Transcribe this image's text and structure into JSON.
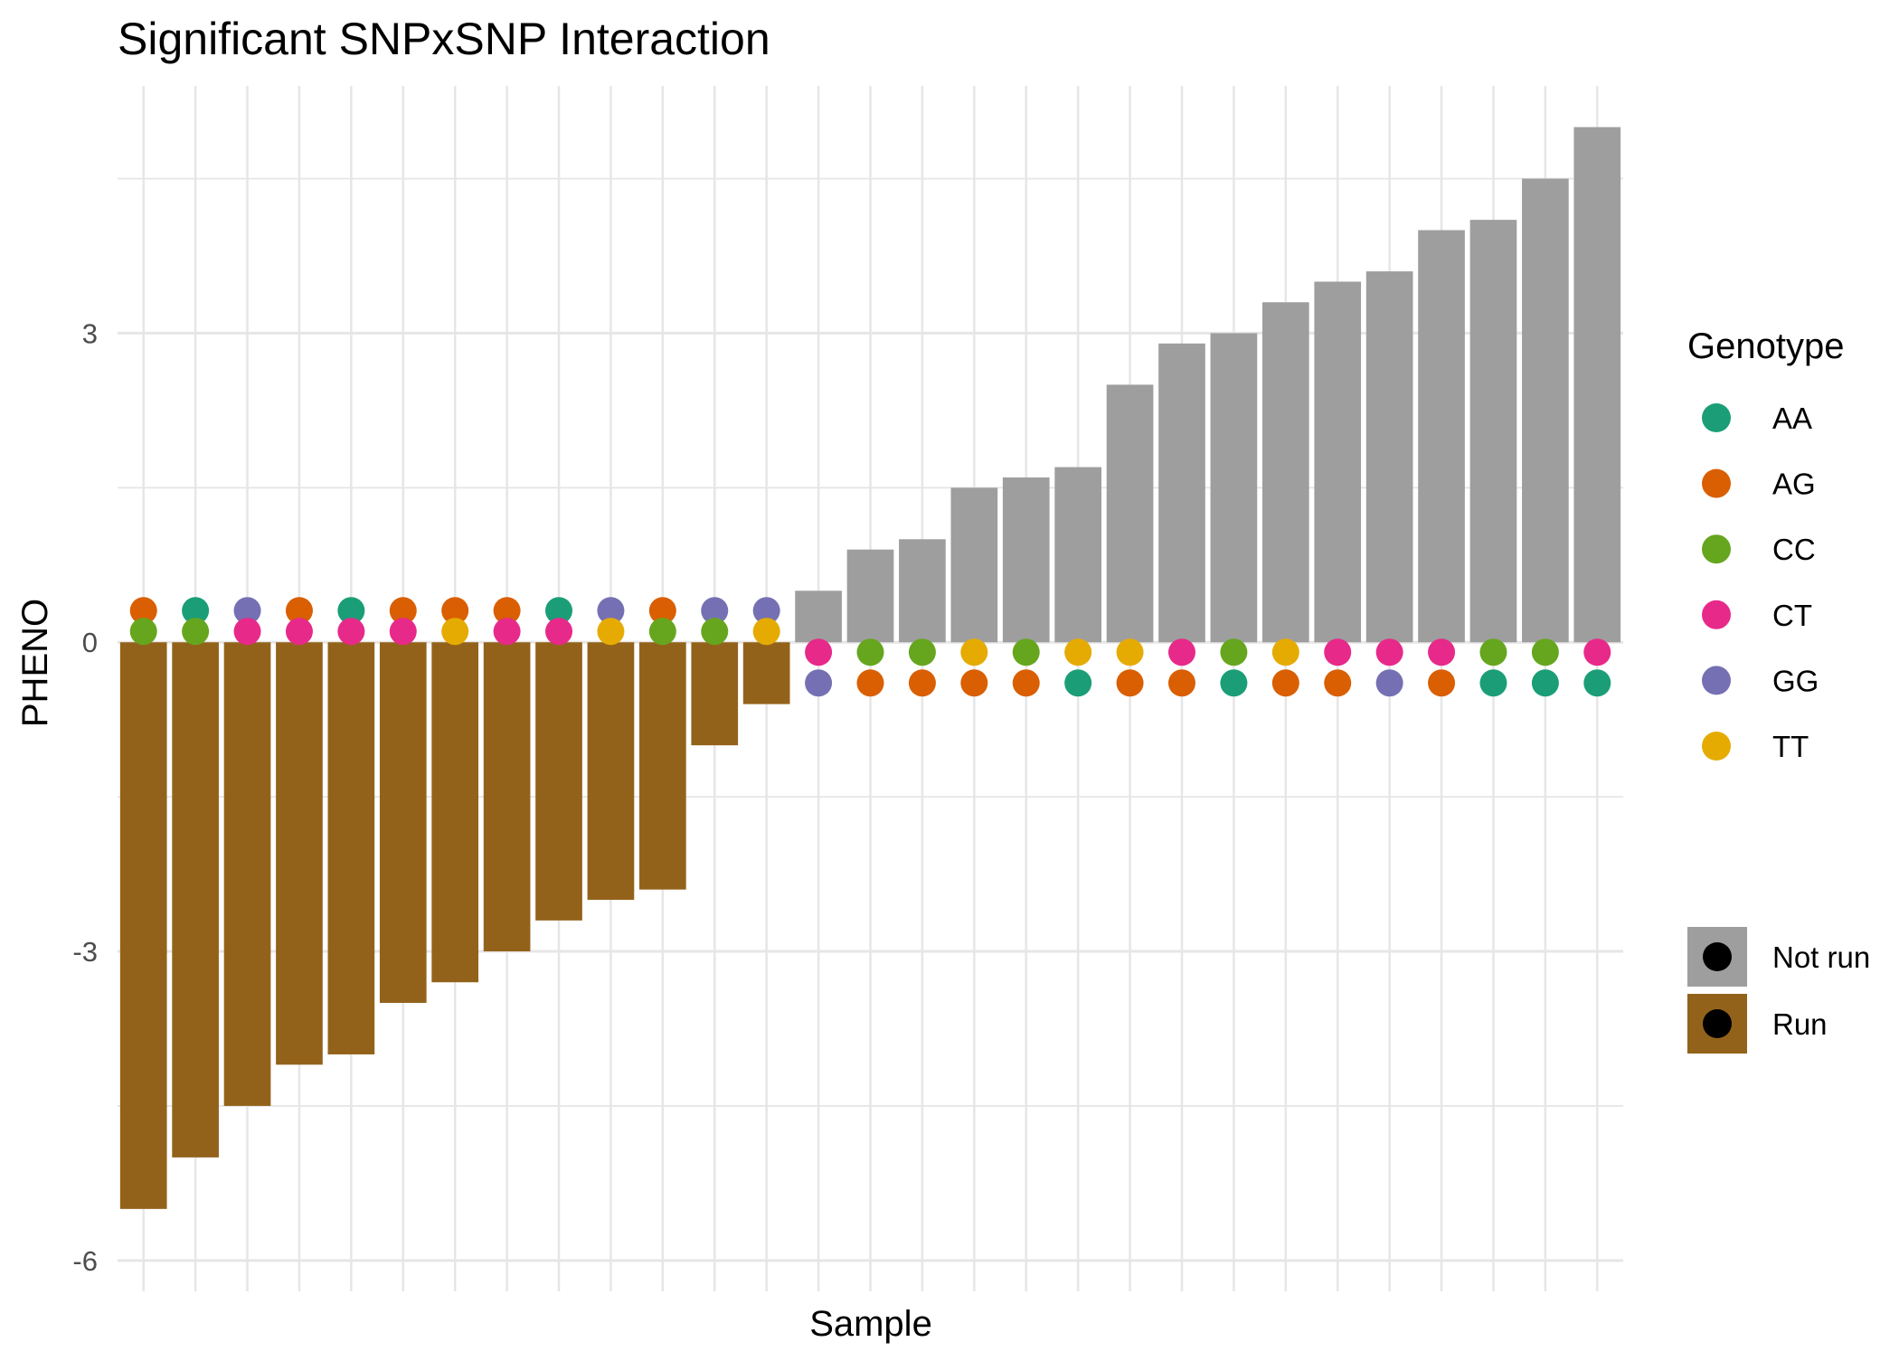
{
  "chart_data": {
    "type": "bar",
    "title": "Significant SNPxSNP Interaction",
    "xlabel": "Sample",
    "ylabel": "PHENO",
    "ylim": [
      -6.3,
      5.4
    ],
    "yticks": [
      -6,
      -3,
      0,
      3
    ],
    "grid": true,
    "legend_placement": "right",
    "values": [
      -5.5,
      -5.0,
      -4.5,
      -4.1,
      -4.0,
      -3.5,
      -3.3,
      -3.0,
      -2.7,
      -2.5,
      -2.4,
      -1.0,
      -0.6,
      0.5,
      0.9,
      1.0,
      1.5,
      1.6,
      1.7,
      2.5,
      2.9,
      3.0,
      3.3,
      3.5,
      3.6,
      4.0,
      4.1,
      4.5,
      5.0
    ],
    "status": [
      "Run",
      "Run",
      "Run",
      "Run",
      "Run",
      "Run",
      "Run",
      "Run",
      "Run",
      "Run",
      "Run",
      "Run",
      "Run",
      "Not run",
      "Not run",
      "Not run",
      "Not run",
      "Not run",
      "Not run",
      "Not run",
      "Not run",
      "Not run",
      "Not run",
      "Not run",
      "Not run",
      "Not run",
      "Not run",
      "Not run",
      "Not run"
    ],
    "genotype_snp1": [
      "CC",
      "CC",
      "CT",
      "CT",
      "CT",
      "CT",
      "TT",
      "CT",
      "CT",
      "TT",
      "CC",
      "CC",
      "TT",
      "CT",
      "CC",
      "CC",
      "TT",
      "CC",
      "TT",
      "TT",
      "CT",
      "CC",
      "TT",
      "CT",
      "CT",
      "CT",
      "CC",
      "CC",
      "CT"
    ],
    "genotype_snp2": [
      "AG",
      "AA",
      "GG",
      "AG",
      "AA",
      "AG",
      "AG",
      "AG",
      "AA",
      "GG",
      "AG",
      "GG",
      "GG",
      "GG",
      "AG",
      "AG",
      "AG",
      "AG",
      "AA",
      "AG",
      "AG",
      "AA",
      "AG",
      "AG",
      "GG",
      "AG",
      "AA",
      "AA",
      "AA"
    ],
    "legend_genotype": {
      "title": "Genotype",
      "entries": [
        {
          "label": "AA",
          "color": "#1B9E77"
        },
        {
          "label": "AG",
          "color": "#D95F02"
        },
        {
          "label": "CC",
          "color": "#66A61E"
        },
        {
          "label": "CT",
          "color": "#E7298A"
        },
        {
          "label": "GG",
          "color": "#7570B3"
        },
        {
          "label": "TT",
          "color": "#E6AB02"
        }
      ]
    },
    "legend_status": {
      "entries": [
        {
          "label": "Not run",
          "color": "#9E9E9E"
        },
        {
          "label": "Run",
          "color": "#93621A"
        }
      ]
    }
  }
}
